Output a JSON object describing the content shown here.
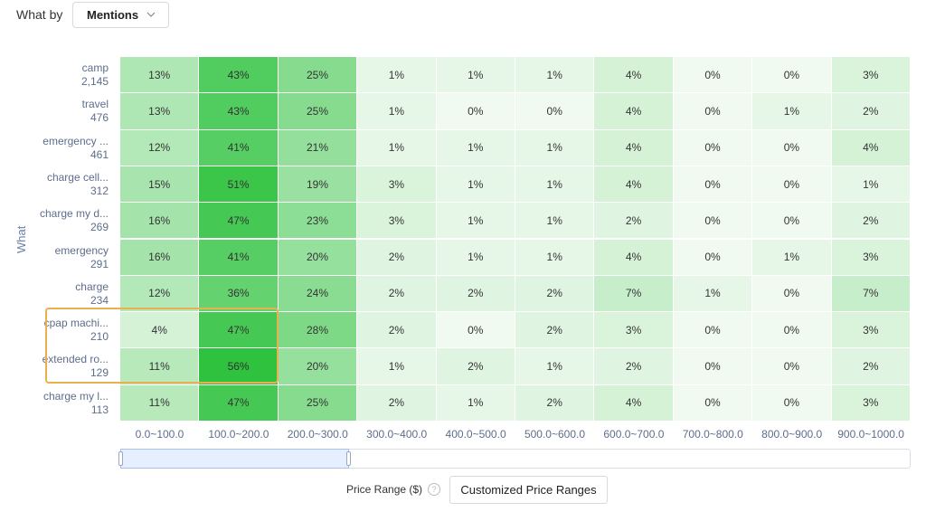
{
  "toolbar": {
    "what_by_label": "What by",
    "dropdown_value": "Mentions"
  },
  "footer": {
    "price_range_label": "Price Range ($)",
    "customize_button": "Customized Price Ranges"
  },
  "slider": {
    "selected_start": 0,
    "selected_end": 3
  },
  "chart_data": {
    "type": "heatmap",
    "ylabel": "What",
    "xlabel": "Price Range ($)",
    "columns": [
      "0.0~100.0",
      "100.0~200.0",
      "200.0~300.0",
      "300.0~400.0",
      "400.0~500.0",
      "500.0~600.0",
      "600.0~700.0",
      "700.0~800.0",
      "800.0~900.0",
      "900.0~1000.0"
    ],
    "rows": [
      {
        "name": "camp",
        "count": "2,145",
        "values": [
          13,
          43,
          25,
          1,
          1,
          1,
          4,
          0,
          0,
          3
        ]
      },
      {
        "name": "travel",
        "count": "476",
        "values": [
          13,
          43,
          25,
          1,
          0,
          0,
          4,
          0,
          1,
          2
        ]
      },
      {
        "name": "emergency ...",
        "count": "461",
        "values": [
          12,
          41,
          21,
          1,
          1,
          1,
          4,
          0,
          0,
          4
        ]
      },
      {
        "name": "charge cell...",
        "count": "312",
        "values": [
          15,
          51,
          19,
          3,
          1,
          1,
          4,
          0,
          0,
          1
        ]
      },
      {
        "name": "charge my d...",
        "count": "269",
        "values": [
          16,
          47,
          23,
          3,
          1,
          1,
          2,
          0,
          0,
          2
        ]
      },
      {
        "name": "emergency",
        "count": "291",
        "values": [
          16,
          41,
          20,
          2,
          1,
          1,
          4,
          0,
          1,
          3
        ]
      },
      {
        "name": "charge",
        "count": "234",
        "values": [
          12,
          36,
          24,
          2,
          2,
          2,
          7,
          1,
          0,
          7
        ]
      },
      {
        "name": "cpap machi...",
        "count": "210",
        "values": [
          4,
          47,
          28,
          2,
          0,
          2,
          3,
          0,
          0,
          3
        ]
      },
      {
        "name": "extended ro...",
        "count": "129",
        "values": [
          11,
          56,
          20,
          1,
          2,
          1,
          2,
          0,
          0,
          2
        ]
      },
      {
        "name": "charge my l...",
        "count": "113",
        "values": [
          11,
          47,
          25,
          2,
          1,
          2,
          4,
          0,
          0,
          3
        ]
      }
    ],
    "value_suffix": "%",
    "highlighted_rows": [
      "cpap machi...",
      "extended ro..."
    ],
    "highlighted_columns": [
      "0.0~100.0",
      "100.0~200.0"
    ]
  }
}
